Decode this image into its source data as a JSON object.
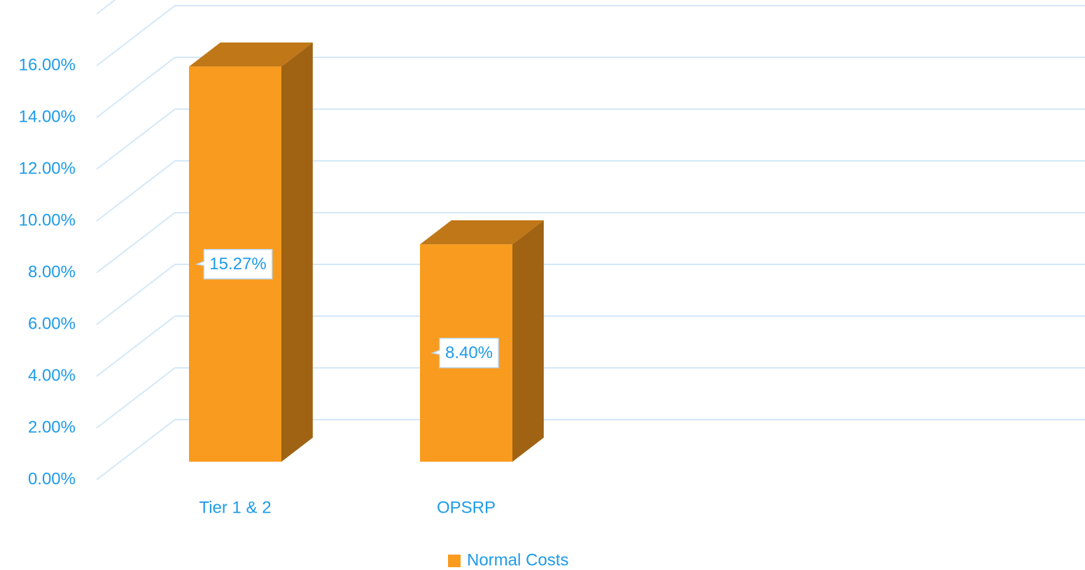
{
  "chart_data": {
    "type": "bar3d",
    "categories": [
      "Tier 1 & 2",
      "OPSRP"
    ],
    "series": [
      {
        "name": "Normal Costs",
        "color": "#f99b1e",
        "values": [
          15.27,
          8.4
        ],
        "value_labels": [
          "15.27%",
          "8.40%"
        ]
      }
    ],
    "ylim": [
      0,
      18
    ],
    "yticks": [
      {
        "value": 0,
        "label": "0.00%"
      },
      {
        "value": 2,
        "label": "2.00%"
      },
      {
        "value": 4,
        "label": "4.00%"
      },
      {
        "value": 6,
        "label": "6.00%"
      },
      {
        "value": 8,
        "label": "8.00%"
      },
      {
        "value": 10,
        "label": "10.00%"
      },
      {
        "value": 12,
        "label": "12.00%"
      },
      {
        "value": 14,
        "label": "14.00%"
      },
      {
        "value": 16,
        "label": "16.00%"
      }
    ],
    "grid": true,
    "legend": "bottom"
  }
}
